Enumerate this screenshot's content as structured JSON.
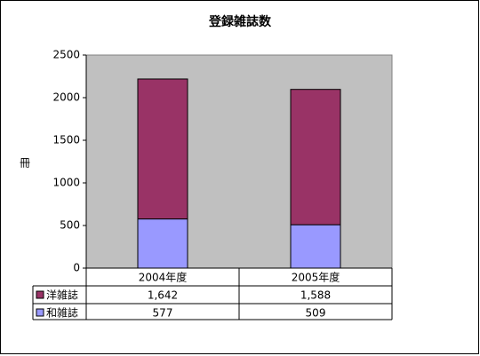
{
  "chart_data": {
    "type": "stacked_bar",
    "title": "登録雑誌数",
    "y_label": "冊",
    "categories": [
      "2004年度",
      "2005年度"
    ],
    "series": [
      {
        "name": "洋雑誌",
        "color": "#993366",
        "values": [
          1642,
          1588
        ],
        "value_labels": [
          "1,642",
          "1,588"
        ]
      },
      {
        "name": "和雑誌",
        "color": "#9999ff",
        "values": [
          577,
          509
        ]
      }
    ],
    "ylim": [
      0,
      2500
    ],
    "yticks": [
      0,
      500,
      1000,
      1500,
      2000,
      2500
    ],
    "plot_background": "#c0c0c0"
  }
}
